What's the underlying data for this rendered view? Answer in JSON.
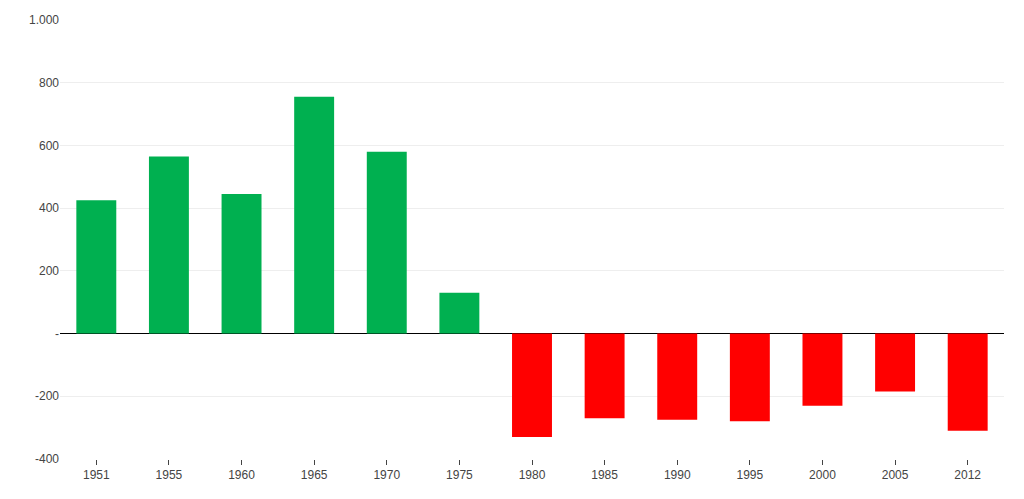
{
  "chart_data": {
    "type": "bar",
    "categories": [
      "1951",
      "1955",
      "1960",
      "1965",
      "1970",
      "1975",
      "1980",
      "1985",
      "1990",
      "1995",
      "2000",
      "2005",
      "2012"
    ],
    "values": [
      425,
      565,
      445,
      755,
      580,
      130,
      -330,
      -270,
      -275,
      -280,
      -230,
      -185,
      -310
    ],
    "colors": [
      "#00B050",
      "#00B050",
      "#00B050",
      "#00B050",
      "#00B050",
      "#00B050",
      "#FF0000",
      "#FF0000",
      "#FF0000",
      "#FF0000",
      "#FF0000",
      "#FF0000",
      "#FF0000"
    ],
    "ylim": [
      -400,
      1000
    ],
    "yticks": [
      -400,
      -200,
      {
        "value": 0,
        "label": "-"
      },
      200,
      400,
      600,
      800,
      {
        "value": 1000,
        "label": "1.000"
      }
    ],
    "grid": true
  }
}
